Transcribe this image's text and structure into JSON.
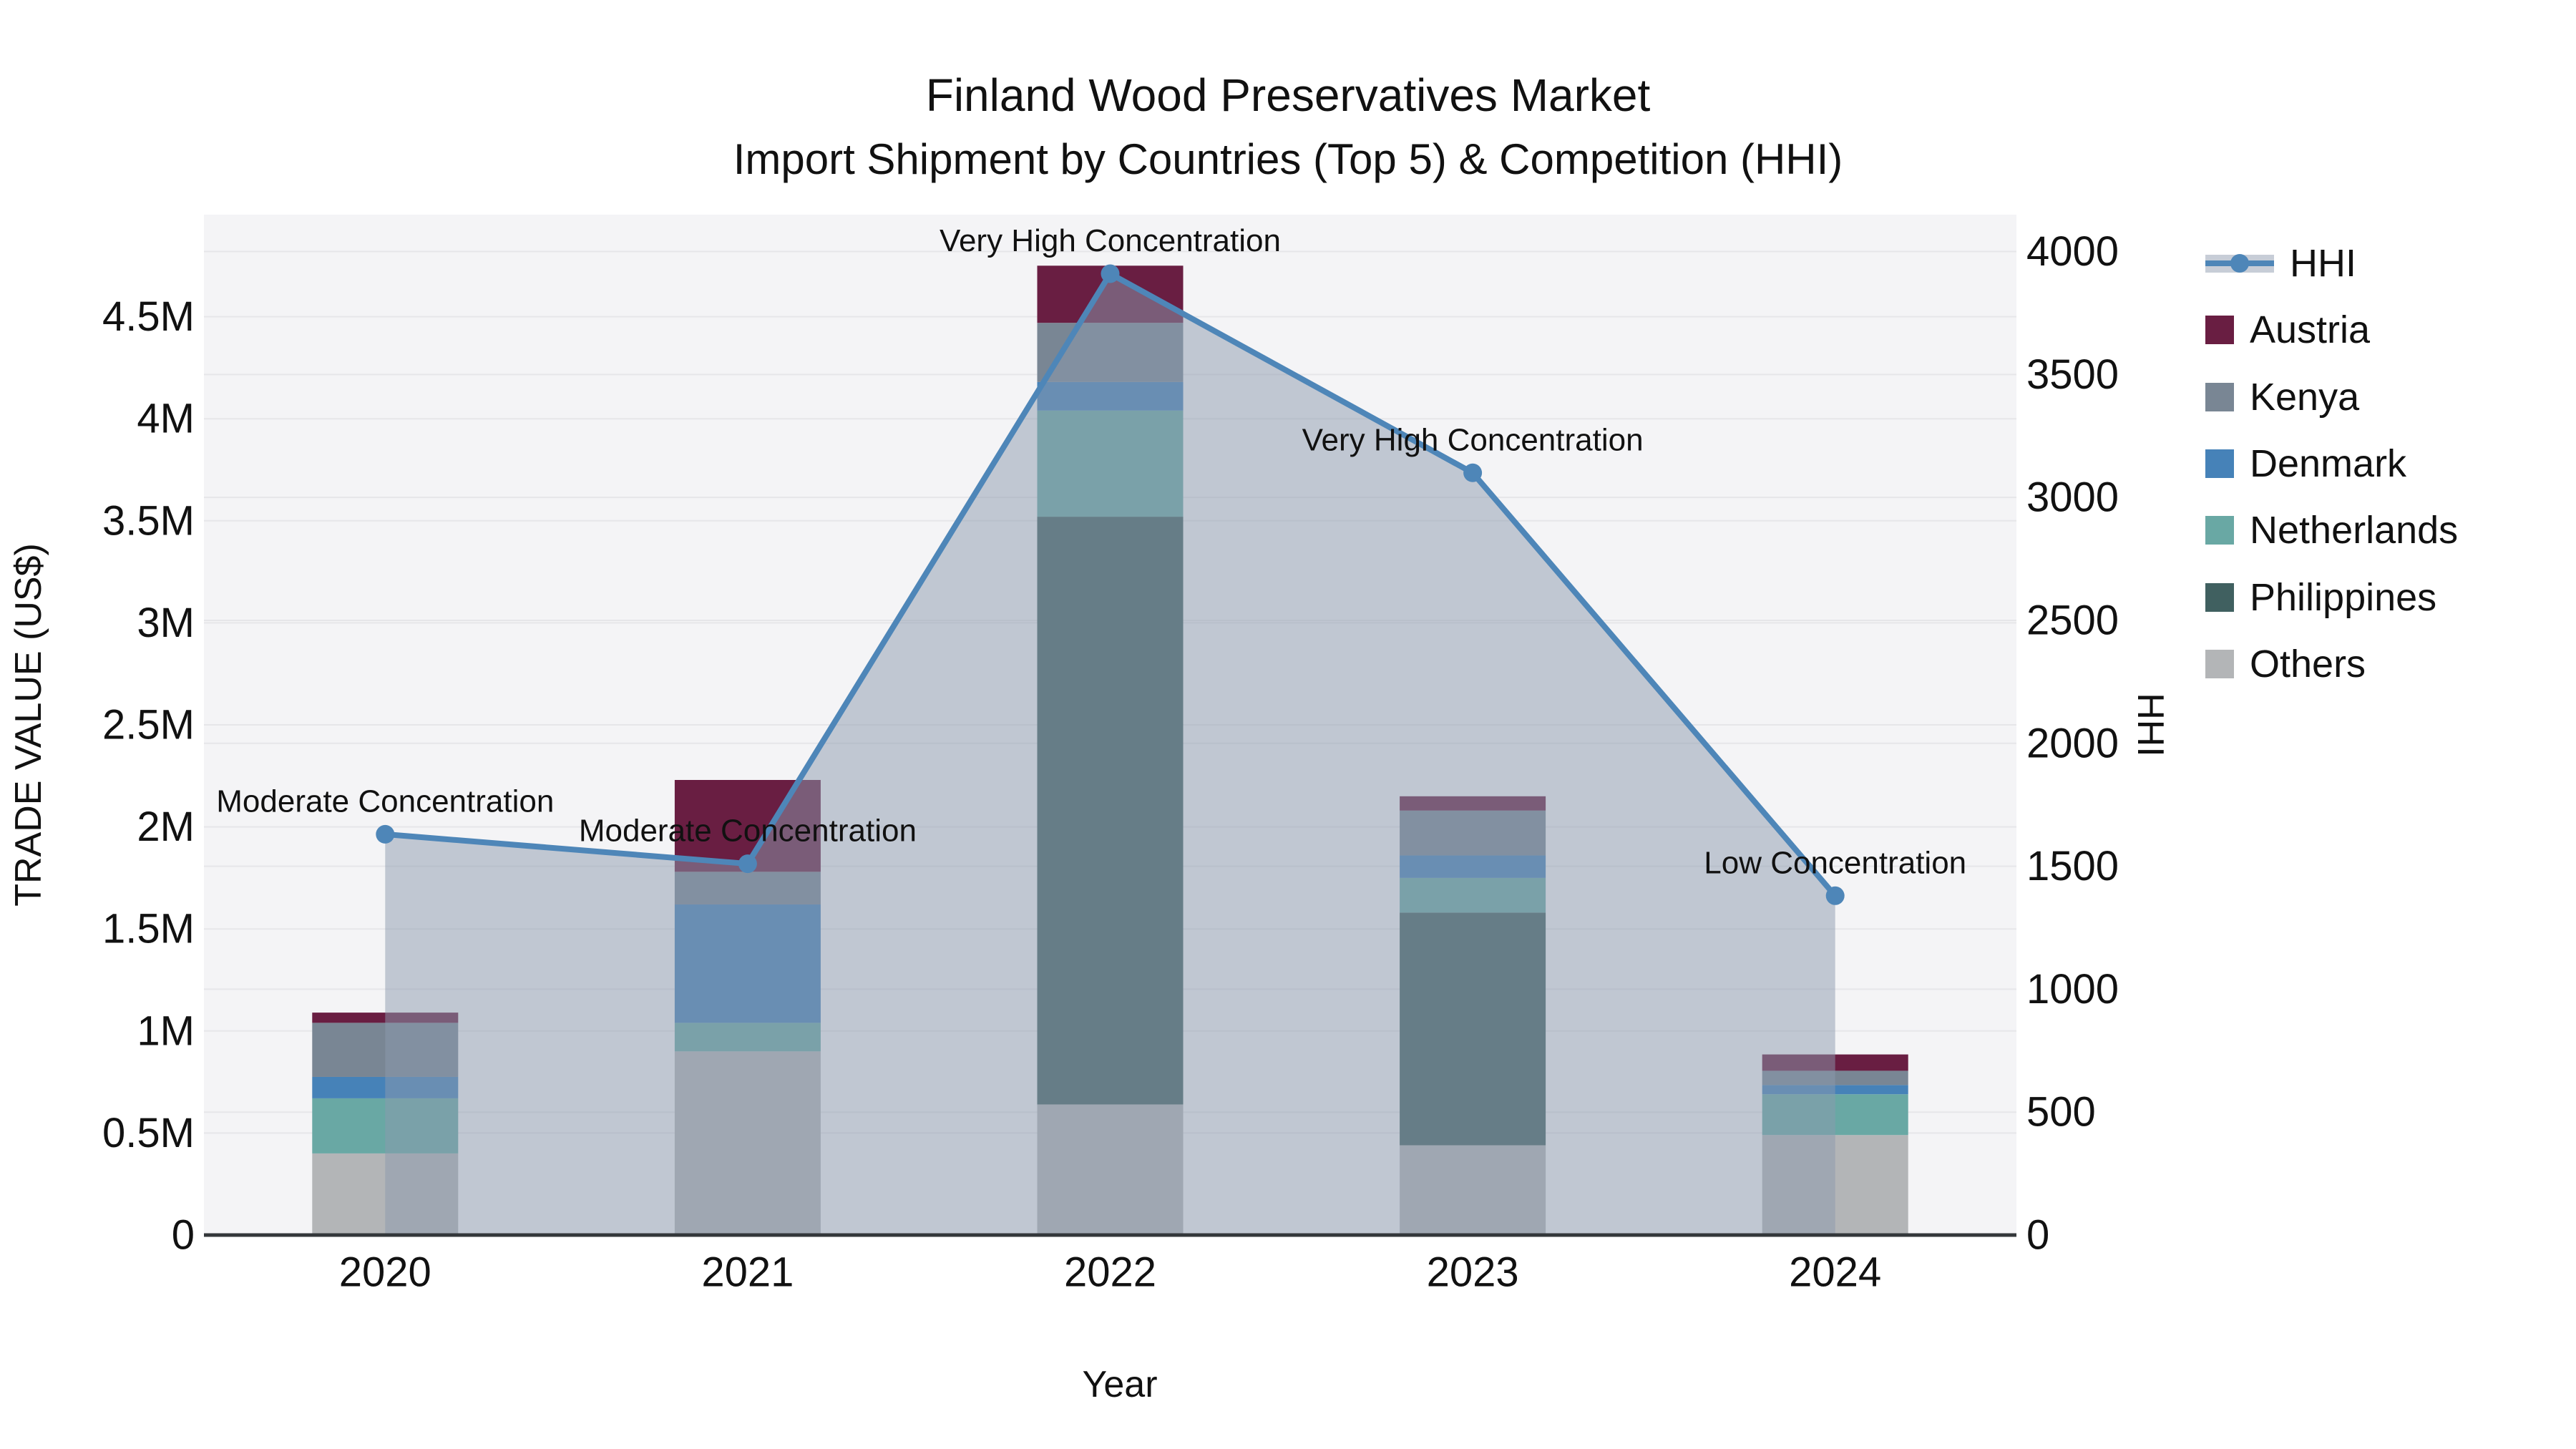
{
  "title": {
    "line1": "Finland Wood Preservatives Market",
    "line2": "Import Shipment by Countries (Top 5) & Competition (HHI)"
  },
  "chart_data": {
    "type": "bar+line",
    "title": "Finland Wood Preservatives Market — Import Shipment by Countries (Top 5) & Competition (HHI)",
    "categories": [
      "2020",
      "2021",
      "2022",
      "2023",
      "2024"
    ],
    "bar_value_unit": "million US$",
    "series": [
      {
        "name": "Others",
        "color": "#b3b5b7",
        "values": [
          0.4,
          0.9,
          0.64,
          0.44,
          0.49
        ]
      },
      {
        "name": "Philippines",
        "color": "#406060",
        "values": [
          0.0,
          0.0,
          2.88,
          1.14,
          0.0
        ]
      },
      {
        "name": "Netherlands",
        "color": "#69a8a4",
        "values": [
          0.27,
          0.14,
          0.52,
          0.17,
          0.2
        ]
      },
      {
        "name": "Denmark",
        "color": "#4682b8",
        "values": [
          0.105,
          0.58,
          0.14,
          0.11,
          0.045
        ]
      },
      {
        "name": "Kenya",
        "color": "#798694",
        "values": [
          0.265,
          0.16,
          0.29,
          0.22,
          0.07
        ]
      },
      {
        "name": "Austria",
        "color": "#691e42",
        "values": [
          0.05,
          0.45,
          0.28,
          0.07,
          0.08
        ]
      }
    ],
    "bar_totals_m": [
      1.09,
      2.23,
      4.75,
      2.15,
      0.885
    ],
    "hhi_line": {
      "name": "HHI",
      "color": "#4e86b8",
      "area_fill": "rgba(139,153,173,0.5)",
      "values": [
        1630,
        1510,
        3910,
        3100,
        1380
      ]
    },
    "annotations": [
      "Moderate Concentration",
      "Moderate Concentration",
      "Very High Concentration",
      "Very High Concentration",
      "Low Concentration"
    ],
    "left_axis": {
      "title": "TRADE VALUE (US$)",
      "ticks": [
        "0",
        "0.5M",
        "1M",
        "1.5M",
        "2M",
        "2.5M",
        "3M",
        "3.5M",
        "4M",
        "4.5M"
      ],
      "tick_values_m": [
        0,
        0.5,
        1,
        1.5,
        2,
        2.5,
        3,
        3.5,
        4,
        4.5
      ],
      "max_m": 5.0
    },
    "right_axis": {
      "title": "HHI",
      "ticks": [
        "0",
        "500",
        "1000",
        "1500",
        "2000",
        "2500",
        "3000",
        "3500",
        "4000"
      ],
      "tick_values": [
        0,
        500,
        1000,
        1500,
        2000,
        2500,
        3000,
        3500,
        4000
      ],
      "max": 4150
    },
    "x_axis": {
      "title": "Year"
    },
    "legend_position": "right",
    "grid": true
  },
  "legend": {
    "items": [
      {
        "label": "HHI",
        "type": "line",
        "color": "#4e86b8"
      },
      {
        "label": "Austria",
        "type": "swatch",
        "color": "#691e42"
      },
      {
        "label": "Kenya",
        "type": "swatch",
        "color": "#798694"
      },
      {
        "label": "Denmark",
        "type": "swatch",
        "color": "#4682b8"
      },
      {
        "label": "Netherlands",
        "type": "swatch",
        "color": "#69a8a4"
      },
      {
        "label": "Philippines",
        "type": "swatch",
        "color": "#406060"
      },
      {
        "label": "Others",
        "type": "swatch",
        "color": "#b3b5b7"
      }
    ]
  },
  "style": {
    "plot_bg": "#f4f4f6",
    "grid_color": "#e6e6e9",
    "axis_line_color": "#33373a",
    "text_color": "#111111",
    "legend_area_band": "#c7cdd7"
  }
}
